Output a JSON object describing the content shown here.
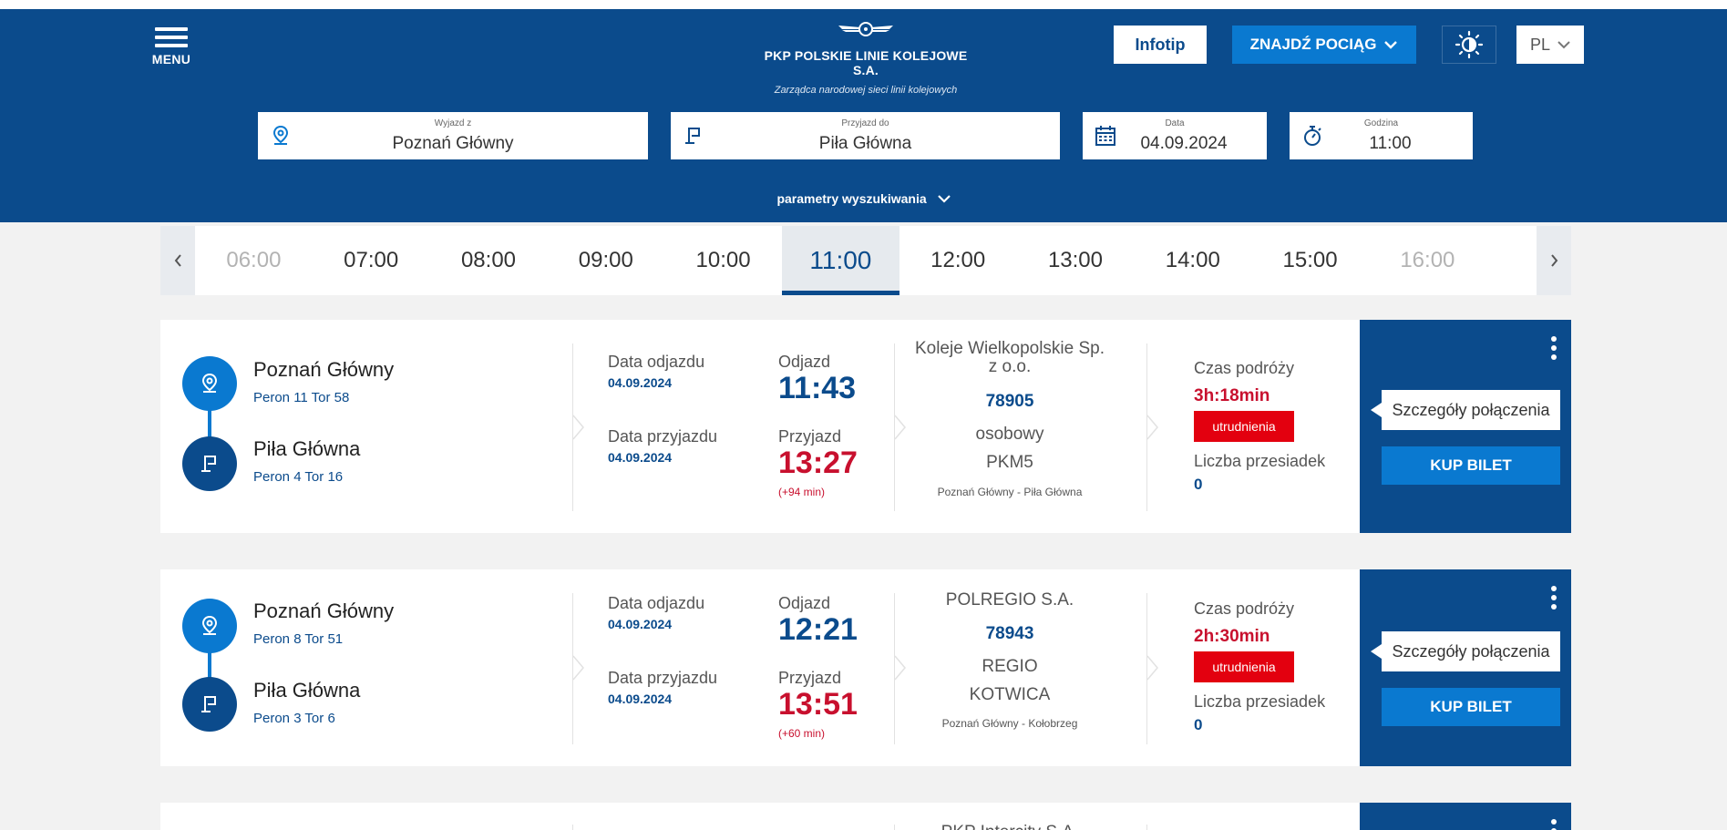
{
  "header": {
    "menu_label": "MENU",
    "brand_name": "PKP POLSKIE LINIE KOLEJOWE S.A.",
    "brand_tagline": "Zarządca narodowej sieci linii kolejowych",
    "infotip_label": "Infotip",
    "find_train_label": "ZNAJDŹ POCIĄG",
    "lang_label": "PL"
  },
  "search": {
    "from": {
      "label": "Wyjazd z",
      "value": "Poznań Główny"
    },
    "to": {
      "label": "Przyjazd do",
      "value": "Piła Główna"
    },
    "date": {
      "label": "Data",
      "value": "04.09.2024"
    },
    "time": {
      "label": "Godzina",
      "value": "11:00"
    },
    "params_label": "parametry wyszukiwania"
  },
  "timebar": {
    "hours": [
      "06:00",
      "07:00",
      "08:00",
      "09:00",
      "10:00",
      "11:00",
      "12:00",
      "13:00",
      "14:00",
      "15:00",
      "16:00"
    ],
    "active": "11:00"
  },
  "labels": {
    "dep_date": "Data odjazdu",
    "arr_date": "Data przyjazdu",
    "dep": "Odjazd",
    "arr": "Przyjazd",
    "travel_time": "Czas podróży",
    "changes": "Liczba przesiadek",
    "details_btn": "Szczegóły połączenia",
    "buy_btn": "KUP BILET"
  },
  "connections": [
    {
      "from": "Poznań Główny",
      "from_platform": "Peron 11 Tor 58",
      "to": "Piła Główna",
      "to_platform": "Peron 4 Tor 16",
      "dep_date": "04.09.2024",
      "arr_date": "04.09.2024",
      "dep_time": "11:43",
      "arr_time": "13:27",
      "delay": "(+94 min)",
      "carrier": "Koleje Wielkopolskie Sp. z o.o.",
      "train_no": "78905",
      "type1": "osobowy",
      "type2": "PKM5",
      "route": "Poznań Główny - Piła Główna",
      "duration": "3h:18min",
      "badge": "utrudnienia",
      "changes": "0"
    },
    {
      "from": "Poznań Główny",
      "from_platform": "Peron 8 Tor 51",
      "to": "Piła Główna",
      "to_platform": "Peron 3 Tor 6",
      "dep_date": "04.09.2024",
      "arr_date": "04.09.2024",
      "dep_time": "12:21",
      "arr_time": "13:51",
      "delay": "(+60 min)",
      "carrier": "POLREGIO S.A.",
      "train_no": "78943",
      "type1": "REGIO",
      "type2": "KOTWICA",
      "route": "Poznań Główny - Kołobrzeg",
      "duration": "2h:30min",
      "badge": "utrudnienia",
      "changes": "0"
    },
    {
      "carrier": "PKP Intercity S.A."
    }
  ]
}
